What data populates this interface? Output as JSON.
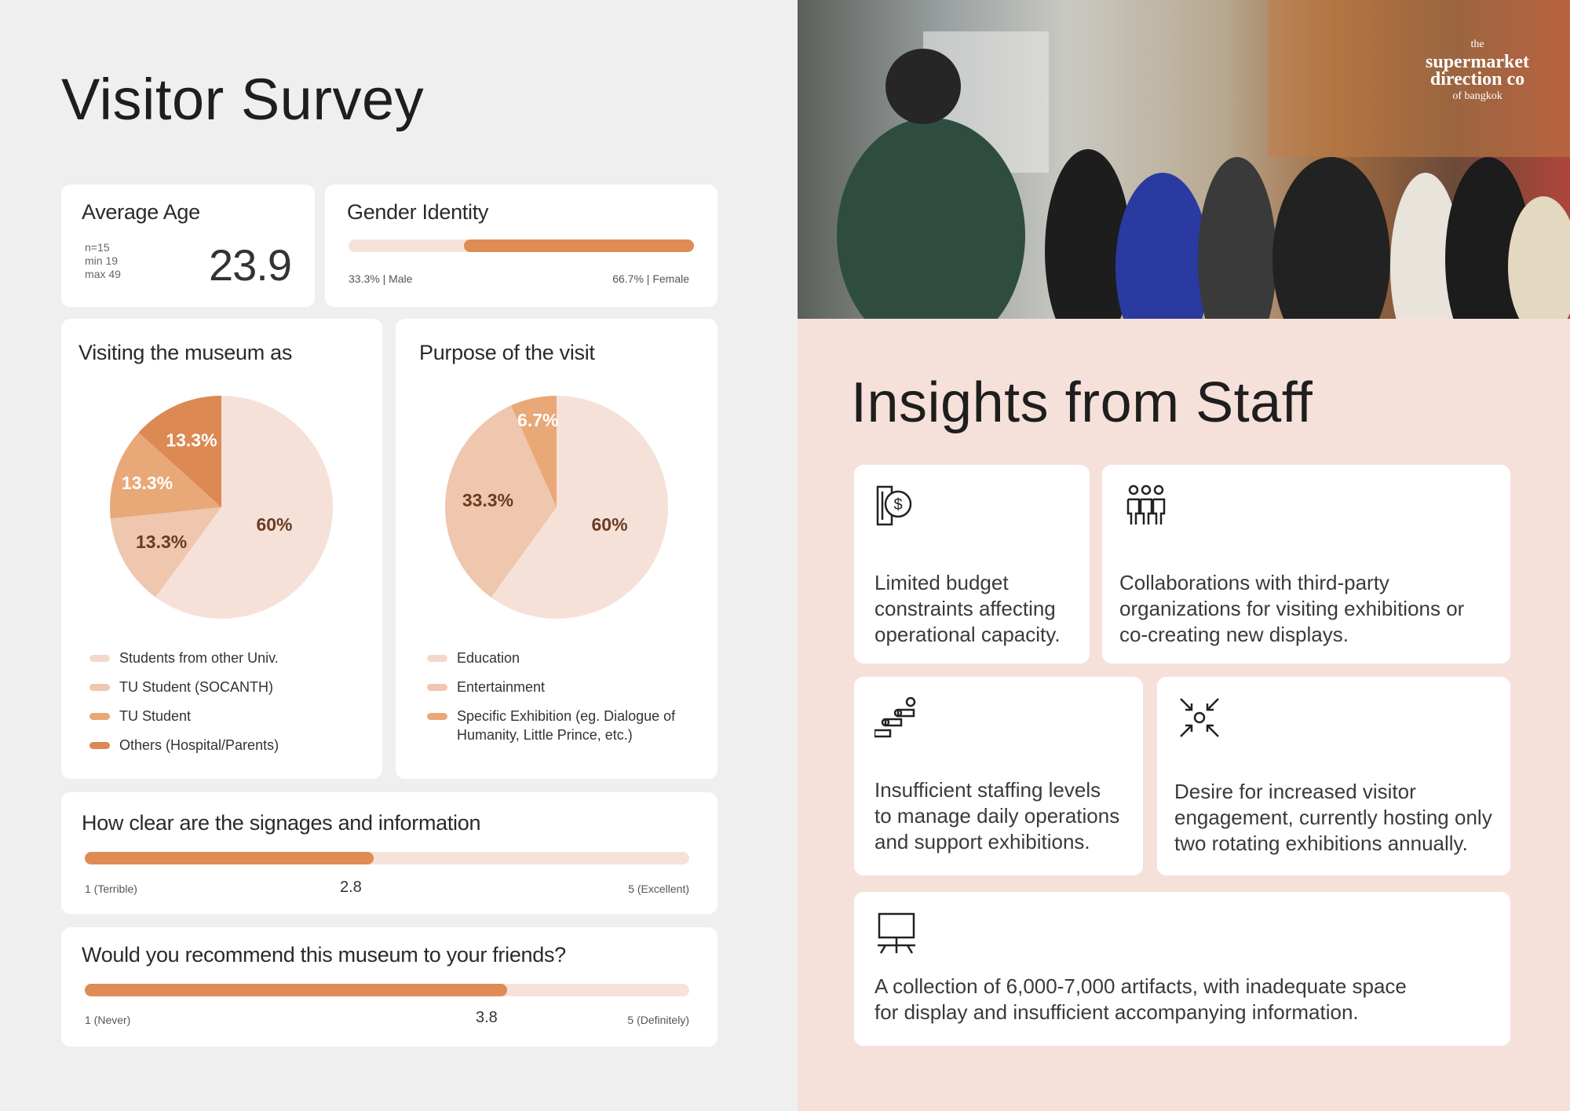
{
  "left": {
    "title": "Visitor Survey",
    "avg_age": {
      "label": "Average Age",
      "n": "n=15",
      "min": "min 19",
      "max": "max 49",
      "value": "23.9"
    },
    "gender": {
      "label": "Gender Identity",
      "male": "33.3% | Male",
      "female": "66.7% | Female",
      "male_fraction": 0.333
    }
  },
  "chart_data": [
    {
      "type": "pie",
      "title": "Visiting the museum as",
      "categories": [
        "Students from other Univ.",
        "TU Student (SOCANTH)",
        "TU Student",
        "Others (Hospital/Parents)"
      ],
      "values": [
        60,
        13.3,
        13.3,
        13.3
      ],
      "labels": [
        "60%",
        "13.3%",
        "13.3%",
        "13.3%"
      ],
      "colors": [
        "#f6e1d9",
        "#efc6ae",
        "#e9a878",
        "#dc8953"
      ],
      "label_colors": [
        "#6b3b20",
        "#6b3b20",
        "#ffffff",
        "#ffffff"
      ]
    },
    {
      "type": "pie",
      "title": "Purpose of the visit",
      "categories": [
        "Education",
        "Entertainment",
        "Specific Exhibition (eg. Dialogue of Humanity, Little Prince, etc.)"
      ],
      "values": [
        60,
        33.3,
        6.7
      ],
      "labels": [
        "60%",
        "33.3%",
        "6.7%"
      ],
      "colors": [
        "#f6e1d9",
        "#efc6ae",
        "#e9a878"
      ],
      "label_colors": [
        "#6b3b20",
        "#6b3b20",
        "#ffffff"
      ]
    }
  ],
  "signage": {
    "title": "How clear are the signages and information",
    "min_label": "1 (Terrible)",
    "max_label": "5 (Excellent)",
    "value": "2.8",
    "score": 2.8,
    "scale_min": 1,
    "scale_max": 5
  },
  "recommend": {
    "title": "Would you recommend this museum to your friends?",
    "min_label": "1 (Never)",
    "max_label": "5 (Definitely)",
    "value": "3.8",
    "score": 3.8,
    "scale_min": 1,
    "scale_max": 5
  },
  "photo": {
    "watermark_lines": [
      "the",
      "supermarket",
      "direction co",
      "of bangkok"
    ]
  },
  "right": {
    "title": "Insights from Staff",
    "insights": [
      {
        "icon": "budget-icon",
        "text": [
          "Limited budget",
          "constraints affecting",
          "operational capacity."
        ]
      },
      {
        "icon": "people-collaboration-icon",
        "text": [
          "Collaborations with third-party",
          "organizations for visiting exhibitions or",
          "co-creating new displays."
        ]
      },
      {
        "icon": "staff-hierarchy-icon",
        "text": [
          "Insufficient staffing levels",
          "to manage daily operations",
          "and support exhibitions."
        ]
      },
      {
        "icon": "converge-arrows-icon",
        "text": [
          "Desire for increased visitor",
          "engagement, currently hosting only",
          "two rotating exhibitions annually."
        ]
      },
      {
        "icon": "presentation-board-icon",
        "text": [
          "A collection of 6,000-7,000 artifacts, with inadequate space",
          "for display and insufficient accompanying information."
        ]
      }
    ]
  }
}
